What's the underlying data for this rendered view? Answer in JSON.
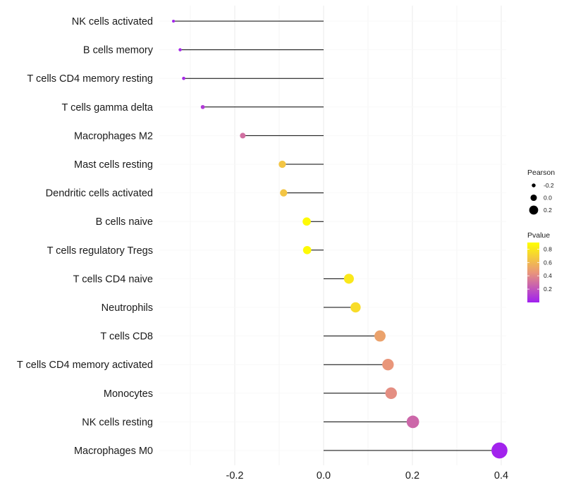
{
  "chart_data": {
    "type": "lollipop",
    "x_axis": {
      "range": [
        -0.34,
        0.41
      ],
      "ticks": [
        -0.2,
        0.0,
        0.2,
        0.4
      ],
      "tick_labels": [
        "-0.2",
        "0.0",
        "0.2",
        "0.4"
      ],
      "minor_gridlines": [
        -0.3,
        -0.1,
        0.1,
        0.3
      ]
    },
    "baseline": 0.0,
    "categories": [
      "NK cells activated",
      "B cells memory",
      "T cells CD4 memory resting",
      "T cells gamma delta",
      "Macrophages M2",
      "Mast cells resting",
      "Dendritic cells activated",
      "B cells naive",
      "T cells regulatory  Tregs ",
      "T cells CD4 naive",
      "Neutrophils",
      "T cells CD8",
      "T cells CD4 memory activated",
      "Monocytes",
      "NK cells resting",
      "Macrophages M0"
    ],
    "pearson": [
      -0.338,
      -0.323,
      -0.315,
      -0.272,
      -0.182,
      -0.093,
      -0.09,
      -0.038,
      -0.037,
      0.057,
      0.072,
      0.127,
      0.145,
      0.152,
      0.201,
      0.396
    ],
    "pvalue": [
      0.02,
      0.03,
      0.04,
      0.1,
      0.3,
      0.65,
      0.65,
      0.88,
      0.88,
      0.8,
      0.75,
      0.5,
      0.45,
      0.42,
      0.27,
      0.01
    ],
    "legend": {
      "size_title": "Pearson",
      "size_entries": [
        {
          "label": "-0.2",
          "value": -0.2
        },
        {
          "label": "0.0",
          "value": 0.0
        },
        {
          "label": "0.2",
          "value": 0.2
        }
      ],
      "color_title": "Pvalue",
      "color_ticks": [
        {
          "label": "0.8",
          "value": 0.8
        },
        {
          "label": "0.6",
          "value": 0.6
        },
        {
          "label": "0.4",
          "value": 0.4
        },
        {
          "label": "0.2",
          "value": 0.2
        }
      ],
      "color_range": [
        0.0,
        0.9
      ]
    },
    "colors": {
      "low": "#a020f0",
      "mid": "#e9967a",
      "high": "#ffff00",
      "stem": "#000000",
      "grid": "#ebebeb"
    }
  }
}
